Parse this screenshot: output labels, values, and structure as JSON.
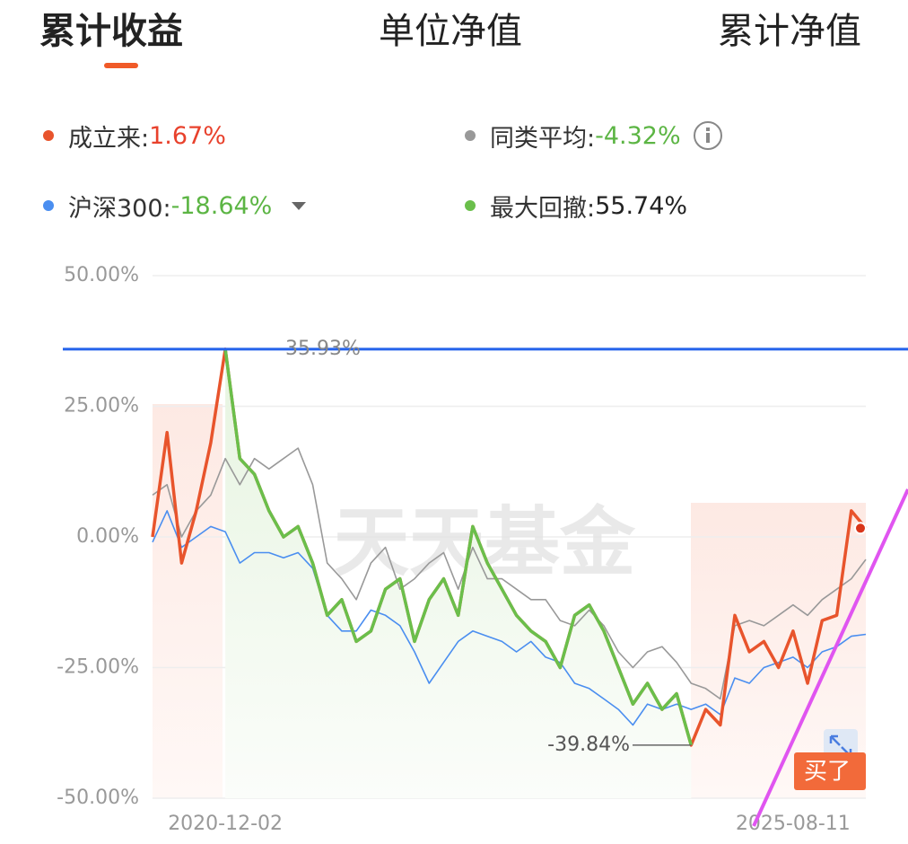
{
  "tabs": [
    "累计收益",
    "单位净值",
    "累计净值"
  ],
  "watermark": "天天基金",
  "buy_badge": "买了",
  "chart_data": {
    "type": "line",
    "categories": [
      null,
      null,
      null,
      null,
      null,
      "2020-12-02",
      null,
      null,
      null,
      null,
      null,
      null,
      null,
      null,
      null,
      null,
      null,
      null,
      null,
      null,
      null,
      null,
      null,
      null,
      null,
      null,
      null,
      null,
      null,
      null,
      null,
      null,
      null,
      null,
      null,
      null,
      null,
      null,
      null,
      null,
      null,
      null,
      null,
      null,
      "2025-08-11",
      null,
      null,
      null,
      null,
      null
    ],
    "series": [
      {
        "name": "成立来:",
        "color": "#e8542c",
        "legend_value": "1.67%",
        "values": [
          0,
          20,
          -5,
          5,
          18,
          35.93,
          15,
          12,
          5,
          0,
          2,
          -5,
          -15,
          -12,
          -20,
          -18,
          -10,
          -8,
          -20,
          -12,
          -8,
          -15,
          2,
          -5,
          -10,
          -15,
          -18,
          -20,
          -25,
          -15,
          -13,
          -18,
          -25,
          -32,
          -28,
          -33,
          -30,
          -39.84,
          -33,
          -36,
          -15,
          -22,
          -20,
          -25,
          -18,
          -28,
          -16,
          -15,
          5,
          1.67
        ]
      },
      {
        "name": "同类平均:",
        "color": "#999999",
        "legend_value": "-4.32%",
        "values": [
          8,
          10,
          0,
          5,
          8,
          15,
          10,
          15,
          13,
          15,
          17,
          10,
          -5,
          -8,
          -12,
          -5,
          -2,
          -10,
          -8,
          -5,
          -3,
          -10,
          -2,
          -8,
          -8,
          -10,
          -12,
          -12,
          -16,
          -17,
          -14,
          -17,
          -22,
          -25,
          -22,
          -21,
          -24,
          -28,
          -29,
          -31,
          -17,
          -16,
          -17,
          -15,
          -13,
          -15,
          -12,
          -10,
          -8,
          -4.32
        ]
      },
      {
        "name": "沪深300:",
        "color": "#4a8ef0",
        "legend_value": "-18.64%",
        "values": [
          -1,
          5,
          -2,
          0,
          2,
          1,
          -5,
          -3,
          -3,
          -4,
          -3,
          -6,
          -15,
          -18,
          -18,
          -14,
          -15,
          -17,
          -22,
          -28,
          -24,
          -20,
          -18,
          -19,
          -20,
          -22,
          -20,
          -23,
          -24,
          -28,
          -29,
          -31,
          -33,
          -36,
          -32,
          -33,
          -32,
          -33,
          -32,
          -34,
          -27,
          -28,
          -25,
          -24,
          -23,
          -25,
          -22,
          -21,
          -19,
          -18.64
        ]
      },
      {
        "name": "最大回撤:",
        "color": "#6abf4b",
        "legend_value": "55.74%",
        "values": [
          null,
          null,
          null,
          null,
          null,
          35.93,
          15,
          12,
          5,
          0,
          2,
          -5,
          -15,
          -12,
          -20,
          -18,
          -10,
          -8,
          -20,
          -12,
          -8,
          -15,
          2,
          -5,
          -10,
          -15,
          -18,
          -20,
          -25,
          -15,
          -13,
          -18,
          -25,
          -32,
          -28,
          -33,
          -30,
          -39.84,
          null,
          null,
          null,
          null,
          null,
          null,
          null,
          null,
          null,
          null,
          null,
          null
        ]
      }
    ],
    "ylim": [
      -50,
      50
    ],
    "yticks": [
      {
        "value": -50,
        "label": "-50.00%"
      },
      {
        "value": -25,
        "label": "-25.00%"
      },
      {
        "value": 0,
        "label": "0.00%"
      },
      {
        "value": 25,
        "label": "25.00%"
      },
      {
        "value": 50,
        "label": "50.00%"
      }
    ],
    "grid": true,
    "annotations": [
      {
        "value": 35.93,
        "label": "35.93%"
      },
      {
        "value": -39.84,
        "label": "-39.84%"
      }
    ]
  }
}
